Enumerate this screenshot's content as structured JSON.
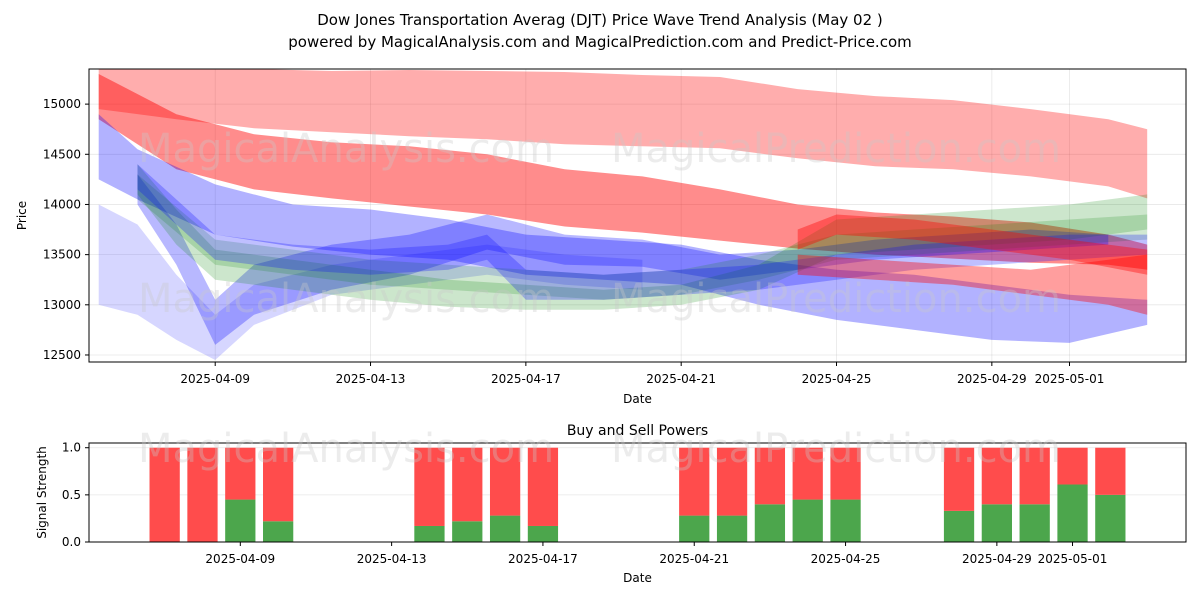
{
  "title_line1": "Dow Jones Transportation Averag (DJT) Price Wave Trend Analysis (May 02 )",
  "title_line2": "powered by MagicalAnalysis.com and MagicalPrediction.com and Predict-Price.com",
  "watermarks": [
    "MagicalAnalysis.com",
    "MagicalPrediction.com"
  ],
  "colors": {
    "red": "#ff0000",
    "blue": "#0000ff",
    "green": "#008000",
    "buy": "#4ca64c",
    "sell": "#ff4c4c"
  },
  "chart_data": [
    {
      "type": "area",
      "xlabel": "Date",
      "ylabel": "Price",
      "ylim": [
        12430,
        15350
      ],
      "xlim": [
        "2025-04-05 18:00",
        "2025-05-04"
      ],
      "x_ticks": [
        "2025-04-09",
        "2025-04-13",
        "2025-04-17",
        "2025-04-21",
        "2025-04-25",
        "2025-04-29",
        "2025-05-01"
      ],
      "y_ticks": [
        12500,
        13000,
        13500,
        14000,
        14500,
        15000
      ],
      "grid": true,
      "series": [
        {
          "color": "red",
          "opacity": 0.32,
          "x": [
            "2025-04-06",
            "2025-04-08",
            "2025-04-10",
            "2025-04-12",
            "2025-04-14",
            "2025-04-16",
            "2025-04-18",
            "2025-04-20",
            "2025-04-22",
            "2025-04-24",
            "2025-04-26",
            "2025-04-28",
            "2025-04-30",
            "2025-05-02",
            "2025-05-03"
          ],
          "upper": [
            15380,
            15390,
            15350,
            15330,
            15340,
            15330,
            15320,
            15290,
            15270,
            15150,
            15080,
            15040,
            14950,
            14850,
            14750
          ],
          "lower": [
            14950,
            14850,
            14760,
            14720,
            14680,
            14650,
            14600,
            14580,
            14560,
            14460,
            14380,
            14350,
            14280,
            14180,
            14060
          ]
        },
        {
          "color": "red",
          "opacity": 0.45,
          "x": [
            "2025-04-06",
            "2025-04-08",
            "2025-04-10",
            "2025-04-12",
            "2025-04-14",
            "2025-04-16",
            "2025-04-18",
            "2025-04-20",
            "2025-04-22",
            "2025-04-24",
            "2025-04-26",
            "2025-04-28",
            "2025-04-30",
            "2025-05-02",
            "2025-05-03"
          ],
          "upper": [
            15300,
            14900,
            14700,
            14620,
            14580,
            14500,
            14350,
            14280,
            14150,
            14000,
            13920,
            13880,
            13820,
            13700,
            13600
          ],
          "lower": [
            14850,
            14350,
            14150,
            14060,
            13980,
            13900,
            13780,
            13720,
            13640,
            13560,
            13500,
            13460,
            13420,
            13400,
            13350
          ]
        },
        {
          "color": "blue",
          "opacity": 0.3,
          "x": [
            "2025-04-06",
            "2025-04-07",
            "2025-04-09",
            "2025-04-11",
            "2025-04-13",
            "2025-04-15",
            "2025-04-17",
            "2025-04-19",
            "2025-04-21",
            "2025-04-23",
            "2025-04-25",
            "2025-04-27",
            "2025-04-29",
            "2025-05-01",
            "2025-05-03"
          ],
          "upper": [
            14900,
            14550,
            14200,
            14000,
            13950,
            13850,
            13700,
            13650,
            13600,
            13450,
            13350,
            13300,
            13200,
            13100,
            13050
          ],
          "lower": [
            14250,
            14050,
            13700,
            13580,
            13500,
            13450,
            13300,
            13250,
            13200,
            13000,
            12850,
            12750,
            12650,
            12620,
            12800
          ]
        },
        {
          "color": "blue",
          "opacity": 0.28,
          "x": [
            "2025-04-07",
            "2025-04-08",
            "2025-04-09",
            "2025-04-10",
            "2025-04-12",
            "2025-04-14",
            "2025-04-16",
            "2025-04-18",
            "2025-04-20",
            "2025-04-22",
            "2025-04-24",
            "2025-04-26",
            "2025-04-28",
            "2025-04-30",
            "2025-05-02"
          ],
          "upper": [
            14300,
            13800,
            13050,
            13400,
            13600,
            13700,
            13900,
            13700,
            13650,
            13500,
            13550,
            13650,
            13700,
            13750,
            13700
          ],
          "lower": [
            14000,
            13400,
            12600,
            12900,
            13150,
            13300,
            13550,
            13400,
            13380,
            13250,
            13350,
            13450,
            13500,
            13550,
            13600
          ]
        },
        {
          "color": "blue",
          "opacity": 0.16,
          "x": [
            "2025-04-06",
            "2025-04-07",
            "2025-04-08",
            "2025-04-09",
            "2025-04-10",
            "2025-04-12",
            "2025-04-14",
            "2025-04-16",
            "2025-04-18",
            "2025-04-20"
          ],
          "upper": [
            14000,
            13800,
            13300,
            12900,
            13200,
            13400,
            13500,
            13600,
            13500,
            13450
          ],
          "lower": [
            13000,
            12900,
            12650,
            12450,
            12800,
            13100,
            13200,
            13300,
            13200,
            13150
          ]
        },
        {
          "color": "green",
          "opacity": 0.2,
          "x": [
            "2025-04-07",
            "2025-04-08",
            "2025-04-09",
            "2025-04-11",
            "2025-04-13",
            "2025-04-15",
            "2025-04-17",
            "2025-04-19",
            "2025-04-21",
            "2025-04-23",
            "2025-04-25",
            "2025-04-27",
            "2025-04-29",
            "2025-05-01",
            "2025-05-03"
          ],
          "upper": [
            14400,
            13950,
            13550,
            13450,
            13350,
            13250,
            13200,
            13150,
            13200,
            13400,
            13850,
            13900,
            13950,
            14000,
            14100
          ],
          "lower": [
            14100,
            13600,
            13250,
            13150,
            13050,
            12980,
            12950,
            12950,
            13000,
            13150,
            13500,
            13550,
            13600,
            13650,
            13750
          ]
        },
        {
          "color": "green",
          "opacity": 0.18,
          "x": [
            "2025-04-07",
            "2025-04-09",
            "2025-04-11",
            "2025-04-13",
            "2025-04-15",
            "2025-04-17",
            "2025-04-19",
            "2025-04-21",
            "2025-04-23",
            "2025-04-25",
            "2025-04-27",
            "2025-04-29",
            "2025-05-01",
            "2025-05-03"
          ],
          "upper": [
            14300,
            13650,
            13550,
            13450,
            13400,
            13350,
            13300,
            13350,
            13500,
            13700,
            13750,
            13800,
            13850,
            13900
          ],
          "lower": [
            14050,
            13400,
            13300,
            13200,
            13150,
            13100,
            13050,
            13100,
            13250,
            13450,
            13500,
            13550,
            13600,
            13650
          ]
        },
        {
          "color": "blue",
          "opacity": 0.25,
          "x": [
            "2025-04-07",
            "2025-04-09",
            "2025-04-11",
            "2025-04-13",
            "2025-04-15",
            "2025-04-16",
            "2025-04-17",
            "2025-04-19",
            "2025-04-21",
            "2025-04-23",
            "2025-04-25",
            "2025-04-27",
            "2025-04-29",
            "2025-05-01",
            "2025-05-03"
          ],
          "upper": [
            14400,
            13700,
            13600,
            13550,
            13600,
            13700,
            13350,
            13300,
            13350,
            13400,
            13500,
            13600,
            13650,
            13700,
            13700
          ],
          "lower": [
            14150,
            13450,
            13350,
            13300,
            13350,
            13450,
            13050,
            13050,
            13100,
            13150,
            13250,
            13350,
            13400,
            13450,
            13500
          ]
        },
        {
          "color": "red",
          "opacity": 0.38,
          "x": [
            "2025-04-24",
            "2025-04-25",
            "2025-04-27",
            "2025-04-29",
            "2025-05-01",
            "2025-05-03"
          ],
          "upper": [
            13750,
            13900,
            13850,
            13750,
            13650,
            13550
          ],
          "lower": [
            13550,
            13700,
            13650,
            13550,
            13450,
            13300
          ]
        },
        {
          "color": "red",
          "opacity": 0.38,
          "x": [
            "2025-04-24",
            "2025-04-26",
            "2025-04-28",
            "2025-04-30",
            "2025-05-02",
            "2025-05-03"
          ],
          "upper": [
            13500,
            13450,
            13400,
            13350,
            13450,
            13500
          ],
          "lower": [
            13300,
            13250,
            13200,
            13100,
            13000,
            12900
          ]
        }
      ]
    },
    {
      "type": "bar",
      "title": "Buy and Sell Powers",
      "xlabel": "Date",
      "ylabel": "Signal Strength",
      "ylim": [
        0,
        1.05
      ],
      "y_ticks": [
        0.0,
        0.5,
        1.0
      ],
      "x_ticks": [
        "2025-04-09",
        "2025-04-13",
        "2025-04-17",
        "2025-04-21",
        "2025-04-25",
        "2025-04-29",
        "2025-05-01"
      ],
      "grid": true,
      "categories": [
        "2025-04-07",
        "2025-04-08",
        "2025-04-09",
        "2025-04-10",
        "2025-04-14",
        "2025-04-15",
        "2025-04-16",
        "2025-04-17",
        "2025-04-21",
        "2025-04-22",
        "2025-04-23",
        "2025-04-24",
        "2025-04-25",
        "2025-04-28",
        "2025-04-29",
        "2025-04-30",
        "2025-05-01",
        "2025-05-02"
      ],
      "buy": [
        0.0,
        0.0,
        0.45,
        0.22,
        0.17,
        0.22,
        0.28,
        0.17,
        0.28,
        0.28,
        0.4,
        0.45,
        0.45,
        0.33,
        0.4,
        0.4,
        0.61,
        0.5
      ],
      "sell": [
        1.0,
        1.0,
        0.55,
        0.78,
        0.83,
        0.78,
        0.72,
        0.83,
        0.72,
        0.72,
        0.6,
        0.55,
        0.55,
        0.67,
        0.6,
        0.6,
        0.39,
        0.5
      ]
    }
  ]
}
